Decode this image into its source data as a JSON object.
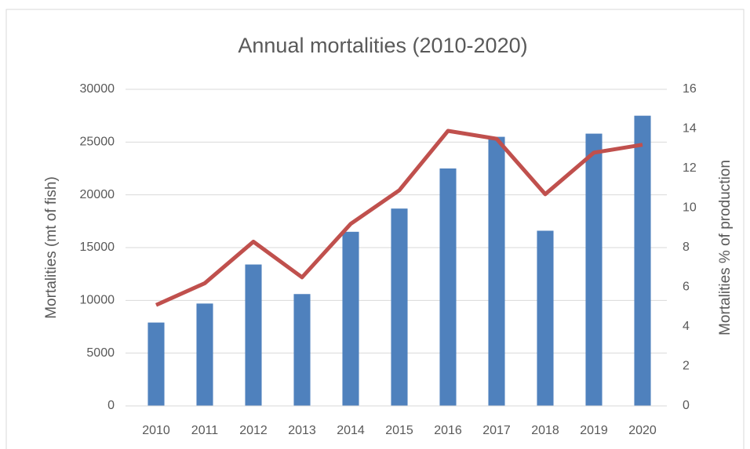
{
  "chart_data": {
    "type": "combo",
    "title": "Annual mortalities (2010-2020)",
    "y_label": "Mortalities (mt of fish)",
    "y2_label": "Mortalities % of production",
    "categories": [
      "2010",
      "2011",
      "2012",
      "2013",
      "2014",
      "2015",
      "2016",
      "2017",
      "2018",
      "2019",
      "2020"
    ],
    "series": [
      {
        "type": "bar",
        "axis": "y",
        "color": "#4f81bd",
        "values": [
          7900,
          9700,
          13400,
          10600,
          16500,
          18700,
          22500,
          25500,
          16600,
          25800,
          27500
        ]
      },
      {
        "type": "line",
        "axis": "y2",
        "color": "#c0504d",
        "values": [
          5.1,
          6.2,
          8.3,
          6.5,
          9.2,
          10.9,
          13.9,
          13.5,
          10.7,
          12.8,
          13.2
        ]
      }
    ],
    "ylim": [
      0,
      30000
    ],
    "yticks": [
      0,
      5000,
      10000,
      15000,
      20000,
      25000,
      30000
    ],
    "y2lim": [
      0,
      16
    ],
    "y2ticks": [
      0,
      2,
      4,
      6,
      8,
      10,
      12,
      14,
      16
    ],
    "grid": true
  }
}
